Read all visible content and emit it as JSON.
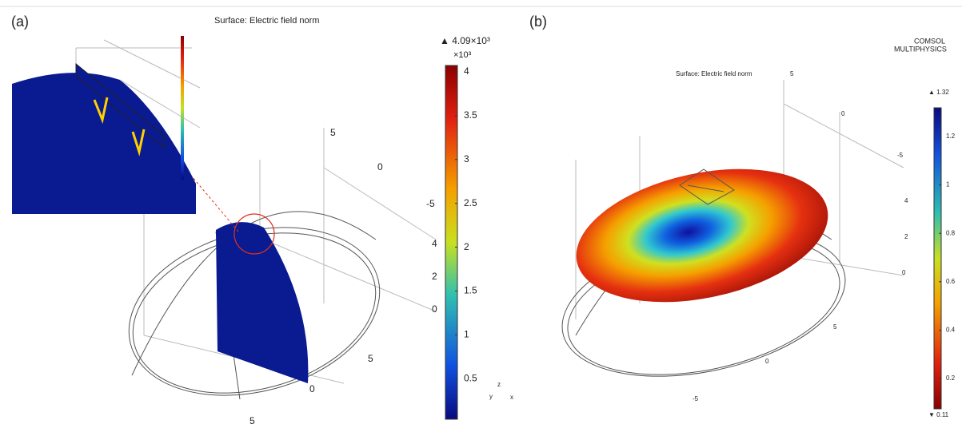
{
  "panels": [
    {
      "label": "(a)",
      "title": "Surface: Electric field norm",
      "colorbar": {
        "max_label": "▲ 4.09×10³",
        "unit": "×10³",
        "min_label": null,
        "ticks": [
          "4",
          "3.5",
          "3",
          "2.5",
          "2",
          "1.5",
          "1",
          "0.5"
        ]
      },
      "axis_labels": [
        "5",
        "0",
        "-5",
        "4",
        "2",
        "0",
        "5",
        "0",
        "5"
      ],
      "triad": [
        "z",
        "y",
        "x"
      ]
    },
    {
      "label": "(b)",
      "title": "Surface: Electric field norm",
      "colorbar": {
        "max_label": "▲ 1.32",
        "unit": null,
        "min_label": "▼ 0.11",
        "ticks": [
          "1.2",
          "1",
          "0.8",
          "0.6",
          "0.4",
          "0.2"
        ]
      },
      "axis_labels": [
        "5",
        "0",
        "-5",
        "4",
        "2",
        "0",
        "5",
        "0",
        "-5"
      ],
      "triad": []
    }
  ],
  "logo": [
    "COMSOL",
    "MULTIPHYSICS"
  ]
}
